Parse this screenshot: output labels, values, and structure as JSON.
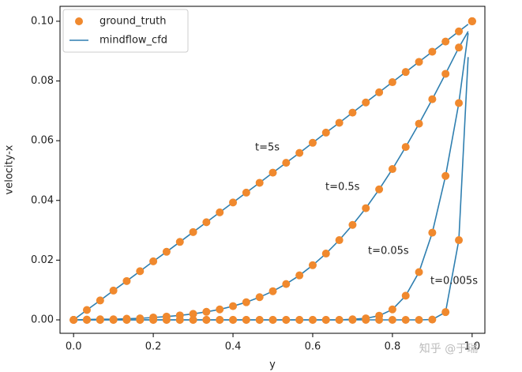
{
  "chart_data": {
    "type": "line",
    "x_label": "y",
    "y_label": "velocity-x",
    "xlim": [
      -0.034,
      1.032
    ],
    "ylim": [
      -0.0045,
      0.105
    ],
    "xticks": [
      {
        "value": 0,
        "label": "0.0"
      },
      {
        "value": 0.2,
        "label": "0.2"
      },
      {
        "value": 0.4,
        "label": "0.4"
      },
      {
        "value": 0.6,
        "label": "0.6"
      },
      {
        "value": 0.8,
        "label": "0.8"
      },
      {
        "value": 1,
        "label": "1.0"
      }
    ],
    "yticks": [
      {
        "value": 0,
        "label": "0.00"
      },
      {
        "value": 0.02,
        "label": "0.02"
      },
      {
        "value": 0.04,
        "label": "0.04"
      },
      {
        "value": 0.06,
        "label": "0.06"
      },
      {
        "value": 0.08,
        "label": "0.08"
      },
      {
        "value": 0.1,
        "label": "0.10"
      }
    ],
    "legend": "upper left",
    "annotations": [
      "t=5s",
      "t=0.5s",
      "t=0.05s",
      "t=0.005s"
    ],
    "watermark": "知乎 @于瑞",
    "series": [
      {
        "name": "ground_truth",
        "color": "#f0892e",
        "style": "markers",
        "x": [
          0,
          0.0333,
          0.0667,
          0.1,
          0.1333,
          0.1667,
          0.2,
          0.2333,
          0.2667,
          0.3,
          0.3333,
          0.3667,
          0.4,
          0.4333,
          0.4667,
          0.5,
          0.5333,
          0.5667,
          0.6,
          0.6333,
          0.6667,
          0.7,
          0.7333,
          0.7667,
          0.8,
          0.8333,
          0.8667,
          0.9,
          0.9333,
          0.9667,
          1
        ],
        "curves": [
          {
            "values": [
              0,
              0.0033,
              0.0065,
              0.0098,
              0.013,
              0.0163,
              0.0196,
              0.0228,
              0.0261,
              0.0294,
              0.0327,
              0.036,
              0.0393,
              0.0426,
              0.0459,
              0.0493,
              0.0526,
              0.0559,
              0.0593,
              0.0627,
              0.066,
              0.0694,
              0.0728,
              0.0762,
              0.0796,
              0.083,
              0.0864,
              0.0898,
              0.0932,
              0.0966,
              0.1
            ]
          },
          {
            "values": [
              0,
              0.0001,
              0.0002,
              0.0002,
              0.0004,
              0.0005,
              0.0008,
              0.0011,
              0.0015,
              0.002,
              0.0027,
              0.0035,
              0.0046,
              0.0059,
              0.0076,
              0.0096,
              0.012,
              0.0149,
              0.0183,
              0.0222,
              0.0267,
              0.0318,
              0.0374,
              0.0437,
              0.0505,
              0.0579,
              0.0657,
              0.0739,
              0.0824,
              0.0912,
              0.1
            ]
          },
          {
            "values": [
              0,
              0,
              0,
              0,
              0,
              0,
              0,
              0,
              0,
              0,
              0,
              0,
              0,
              0,
              0,
              0,
              0,
              0,
              0,
              0,
              0,
              0.0002,
              0.0005,
              0.0014,
              0.0035,
              0.0081,
              0.016,
              0.0292,
              0.0482,
              0.0726,
              0.1
            ]
          },
          {
            "values": [
              0,
              0,
              0,
              0,
              0,
              0,
              0,
              0,
              0,
              0,
              0,
              0,
              0,
              0,
              0,
              0,
              0,
              0,
              0,
              0,
              0,
              0,
              0,
              0,
              0,
              0,
              0,
              0.0001,
              0.0026,
              0.0267,
              0.1
            ]
          }
        ]
      },
      {
        "name": "mindflow_cfd",
        "color": "#2f7fb0",
        "style": "line",
        "x": [
          0,
          0.0333,
          0.0667,
          0.1,
          0.1333,
          0.1667,
          0.2,
          0.2333,
          0.2667,
          0.3,
          0.3333,
          0.3667,
          0.4,
          0.4333,
          0.4667,
          0.5,
          0.5333,
          0.5667,
          0.6,
          0.6333,
          0.6667,
          0.7,
          0.7333,
          0.7667,
          0.8,
          0.8333,
          0.8667,
          0.9,
          0.9333,
          0.9667,
          0.99
        ],
        "curves": [
          {
            "values": [
              0,
              0.0033,
              0.0065,
              0.0098,
              0.013,
              0.0163,
              0.0196,
              0.0228,
              0.0261,
              0.0294,
              0.0327,
              0.036,
              0.0393,
              0.0426,
              0.0459,
              0.0493,
              0.0526,
              0.0559,
              0.0593,
              0.0627,
              0.066,
              0.0694,
              0.0728,
              0.0762,
              0.0796,
              0.083,
              0.0864,
              0.0898,
              0.0932,
              0.0966,
              0.099
            ]
          },
          {
            "values": [
              0,
              0.0001,
              0.0002,
              0.0002,
              0.0004,
              0.0005,
              0.0008,
              0.0011,
              0.0015,
              0.002,
              0.0027,
              0.0035,
              0.0046,
              0.0059,
              0.0076,
              0.0096,
              0.012,
              0.0149,
              0.0183,
              0.0222,
              0.0267,
              0.0318,
              0.0374,
              0.0437,
              0.0505,
              0.0579,
              0.0657,
              0.0739,
              0.0824,
              0.0912,
              0.0966
            ]
          },
          {
            "values": [
              0,
              0,
              0,
              0,
              0,
              0,
              0,
              0,
              0,
              0,
              0,
              0,
              0,
              0,
              0,
              0,
              0,
              0,
              0,
              0,
              0,
              0.0002,
              0.0005,
              0.0014,
              0.0035,
              0.0081,
              0.016,
              0.0292,
              0.0482,
              0.0726,
              0.096
            ]
          },
          {
            "values": [
              0,
              0,
              0,
              0,
              0,
              0,
              0,
              0,
              0,
              0,
              0,
              0,
              0,
              0,
              0,
              0,
              0,
              0,
              0,
              0,
              0,
              0,
              0,
              0,
              0,
              0,
              0,
              0.0001,
              0.0026,
              0.0267,
              0.088
            ]
          }
        ]
      }
    ]
  }
}
